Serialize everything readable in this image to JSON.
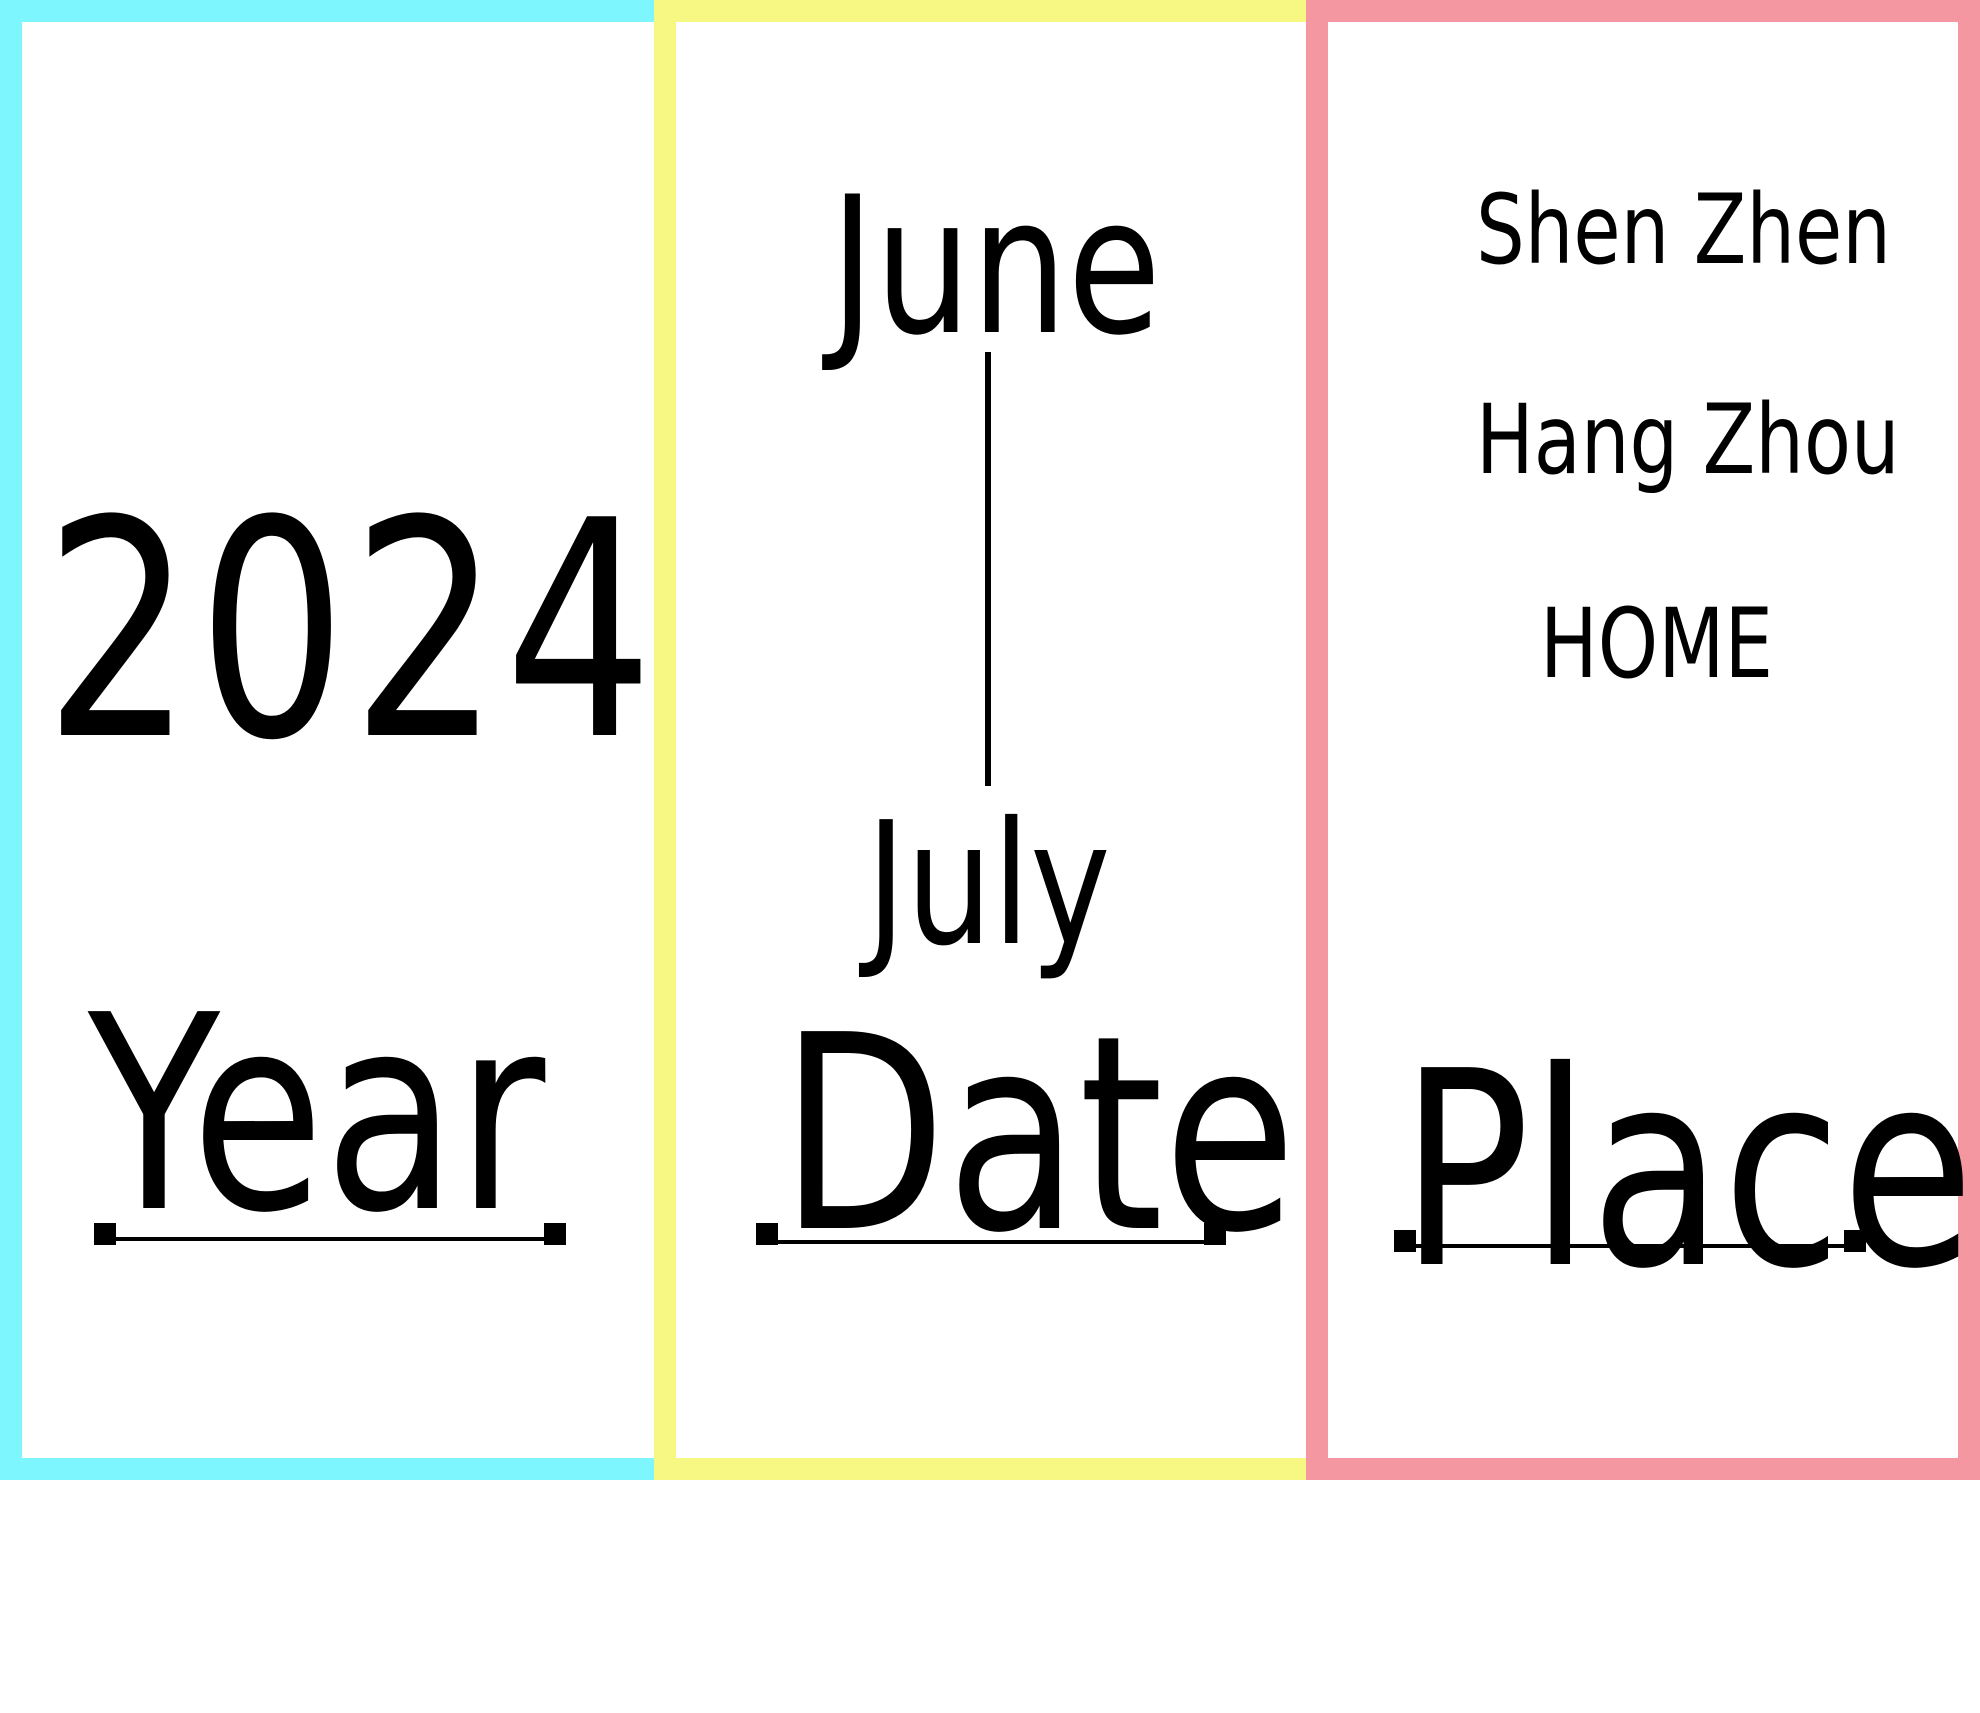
{
  "colors": {
    "year_border": "#7df6fd",
    "date_border": "#f7f783",
    "place_border": "#f497a1",
    "text": "#000000",
    "background": "#ffffff"
  },
  "year": {
    "number": "2024",
    "label": "Year"
  },
  "date": {
    "months": [
      "June",
      "July"
    ],
    "label": "Date"
  },
  "place": {
    "items": [
      "Shen Zhen",
      "Hang Zhou",
      "HOME"
    ],
    "label": "Place"
  }
}
